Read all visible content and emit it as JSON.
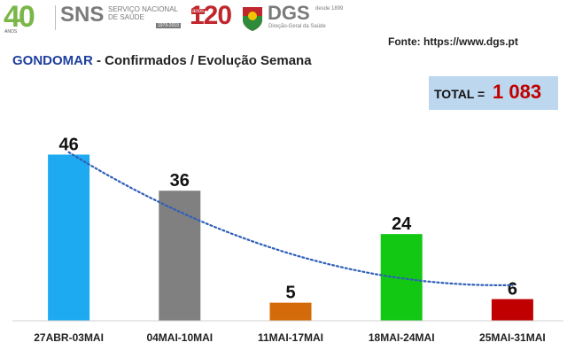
{
  "logos": {
    "sns_number": "40",
    "sns_anos": "ANOS",
    "sns_name": "SNS",
    "sns_subtitle": "SERVIÇO NACIONAL DE SAÚDE",
    "sns_years": "1979-2019",
    "dgs_number": "120",
    "dgs_anos": "anos",
    "dgs_name": "DGS",
    "dgs_since": "desde 1899",
    "dgs_subtitle": "Direção-Geral da Saúde"
  },
  "source": "Fonte: https://www.dgs.pt",
  "header": {
    "place": "GONDOMAR",
    "rest": " - Confirmados / Evolução Semana"
  },
  "total": {
    "label": "TOTAL =",
    "value": "1 083"
  },
  "colors": {
    "trend": "#2e5fb8",
    "title_place": "#1f3f9f",
    "total_value": "#c00000",
    "total_box": "#bdd7ee"
  },
  "chart_data": {
    "type": "bar",
    "categories": [
      "27ABR-03MAI",
      "04MAI-10MAI",
      "11MAI-17MAI",
      "18MAI-24MAI",
      "25MAI-31MAI"
    ],
    "values": [
      46,
      36,
      5,
      24,
      6
    ],
    "bar_colors": [
      "#1eaaf1",
      "#808080",
      "#d46a0a",
      "#12c812",
      "#c00000"
    ],
    "data_labels": [
      "46",
      "36",
      "5",
      "24",
      "6"
    ],
    "trendline": "polynomial",
    "ylim": [
      0,
      52
    ],
    "grid": false,
    "legend": "none"
  }
}
